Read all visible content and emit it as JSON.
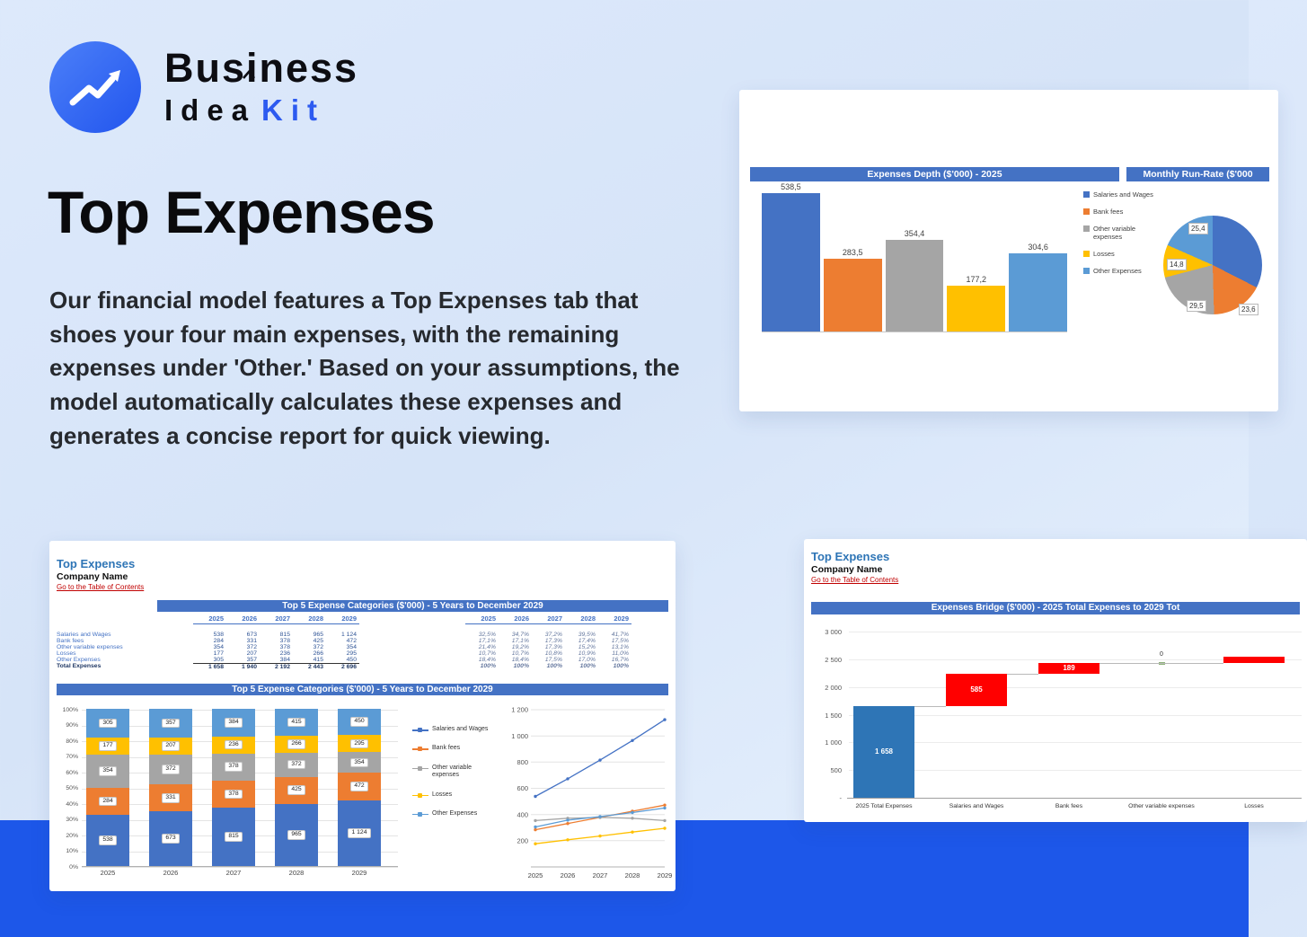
{
  "brand": {
    "line1": "Business",
    "line2_idea": "Idea",
    "line2_kit": "Kit"
  },
  "hero": {
    "title": "Top Expenses",
    "description": "Our financial model features a Top Expenses tab that shoes your four main expenses, with the remaining expenses under 'Other.' Based on your assumptions, the model automatically calculates these expenses and generates a concise report for quick viewing."
  },
  "colors": {
    "series": [
      "#4472C4",
      "#ED7D31",
      "#A5A5A5",
      "#FFC000",
      "#5B9BD5"
    ],
    "header_blue": "#4472C4",
    "bridge_total": "#2E75B6",
    "bridge_increase": "#FF0000",
    "band_blue": "#1D57E9",
    "accent": "#2D5BF0"
  },
  "categories": [
    "Salaries and Wages",
    "Bank fees",
    "Other variable expenses",
    "Losses",
    "Other Expenses"
  ],
  "depth_card": {
    "title_left": "Expenses Depth ($'000) - 2025",
    "title_right": "Monthly Run-Rate ($'000"
  },
  "sheet_card": {
    "title": "Top Expenses",
    "company": "Company Name",
    "link": "Go to the Table of Contents",
    "table_header": "Top 5 Expense Categories ($'000) - 5 Years to December 2029",
    "chart_header": "Top 5 Expense Categories ($'000) - 5 Years to December 2029"
  },
  "bridge_card": {
    "title": "Top Expenses",
    "company": "Company Name",
    "link": "Go to the Table of Contents",
    "chart_header": "Expenses Bridge ($'000) - 2025 Total Expenses to 2029 Tot"
  },
  "chart_data": [
    {
      "id": "expenses-depth",
      "type": "bar",
      "title": "Expenses Depth ($'000) - 2025",
      "categories": [
        "Salaries and Wages",
        "Bank fees",
        "Other variable expenses",
        "Losses",
        "Other Expenses"
      ],
      "values": [
        538.5,
        283.5,
        354.4,
        177.2,
        304.6
      ],
      "labels": [
        "538,5",
        "283,5",
        "354,4",
        "177,2",
        "304,6"
      ],
      "ylim": [
        0,
        600
      ],
      "legend_position": "right"
    },
    {
      "id": "monthly-runrate-pie",
      "type": "pie",
      "title": "Monthly Run-Rate ($'000",
      "slices": [
        {
          "name": "Salaries and Wages",
          "value": 44.9,
          "label": ""
        },
        {
          "name": "Bank fees",
          "value": 23.6,
          "label": "23,6"
        },
        {
          "name": "Other variable expenses",
          "value": 29.5,
          "label": "29,5"
        },
        {
          "name": "Losses",
          "value": 14.8,
          "label": "14,8"
        },
        {
          "name": "Other Expenses",
          "value": 25.4,
          "label": "25,4"
        }
      ]
    },
    {
      "id": "top5-table",
      "type": "table",
      "title": "Top 5 Expense Categories ($'000) - 5 Years to December 2029",
      "years": [
        "2025",
        "2026",
        "2027",
        "2028",
        "2029"
      ],
      "rows": [
        {
          "label": "Salaries and Wages",
          "values": [
            "538",
            "673",
            "815",
            "965",
            "1 124"
          ],
          "pct": [
            "32,5%",
            "34,7%",
            "37,2%",
            "39,5%",
            "41,7%"
          ]
        },
        {
          "label": "Bank fees",
          "values": [
            "284",
            "331",
            "378",
            "425",
            "472"
          ],
          "pct": [
            "17,1%",
            "17,1%",
            "17,3%",
            "17,4%",
            "17,5%"
          ]
        },
        {
          "label": "Other variable expenses",
          "values": [
            "354",
            "372",
            "378",
            "372",
            "354"
          ],
          "pct": [
            "21,4%",
            "19,2%",
            "17,3%",
            "15,2%",
            "13,1%"
          ]
        },
        {
          "label": "Losses",
          "values": [
            "177",
            "207",
            "236",
            "266",
            "295"
          ],
          "pct": [
            "10,7%",
            "10,7%",
            "10,8%",
            "10,9%",
            "11,0%"
          ]
        },
        {
          "label": "Other Expenses",
          "values": [
            "305",
            "357",
            "384",
            "415",
            "450"
          ],
          "pct": [
            "18,4%",
            "18,4%",
            "17,5%",
            "17,0%",
            "16,7%"
          ]
        },
        {
          "label": "Total Expenses",
          "values": [
            "1 658",
            "1 940",
            "2 192",
            "2 443",
            "2 696"
          ],
          "pct": [
            "100%",
            "100%",
            "100%",
            "100%",
            "100%"
          ],
          "total": true
        }
      ]
    },
    {
      "id": "top5-stacked",
      "type": "bar",
      "subtype": "stacked-100",
      "title": "Top 5 Expense Categories ($'000) - 5 Years to December 2029",
      "categories": [
        "2025",
        "2026",
        "2027",
        "2028",
        "2029"
      ],
      "series": [
        {
          "name": "Salaries and Wages",
          "values": [
            538,
            673,
            815,
            965,
            1124
          ]
        },
        {
          "name": "Bank fees",
          "values": [
            284,
            331,
            378,
            425,
            472
          ]
        },
        {
          "name": "Other variable expenses",
          "values": [
            354,
            372,
            378,
            372,
            354
          ]
        },
        {
          "name": "Losses",
          "values": [
            177,
            207,
            236,
            266,
            295
          ]
        },
        {
          "name": "Other Expenses",
          "values": [
            305,
            357,
            384,
            415,
            450
          ]
        }
      ],
      "y_ticks": [
        "100%",
        "90%",
        "80%",
        "70%",
        "60%",
        "50%",
        "40%",
        "30%",
        "20%",
        "10%",
        "0%"
      ],
      "legend_position": "right"
    },
    {
      "id": "top5-lines",
      "type": "line",
      "x": [
        "2025",
        "2026",
        "2027",
        "2028",
        "2029"
      ],
      "series": [
        {
          "name": "Salaries and Wages",
          "values": [
            538,
            673,
            815,
            965,
            1124
          ]
        },
        {
          "name": "Bank fees",
          "values": [
            284,
            331,
            378,
            425,
            472
          ]
        },
        {
          "name": "Other variable expenses",
          "values": [
            354,
            372,
            378,
            372,
            354
          ]
        },
        {
          "name": "Losses",
          "values": [
            177,
            207,
            236,
            266,
            295
          ]
        },
        {
          "name": "Other Expenses",
          "values": [
            305,
            357,
            384,
            415,
            450
          ]
        }
      ],
      "y_ticks": [
        1200,
        1000,
        800,
        600,
        400,
        200
      ],
      "ylim": [
        0,
        1200
      ]
    },
    {
      "id": "expenses-bridge",
      "type": "bar",
      "subtype": "waterfall",
      "title": "Expenses Bridge ($'000) - 2025 Total Expenses to 2029 Tot",
      "categories": [
        "2025 Total Expenses",
        "Salaries and Wages",
        "Bank fees",
        "Other variable expenses",
        "Losses"
      ],
      "bars": [
        {
          "label": "1 658",
          "start": 0,
          "end": 1658,
          "style": "total"
        },
        {
          "label": "585",
          "start": 1658,
          "end": 2243,
          "style": "increase"
        },
        {
          "label": "189",
          "start": 2243,
          "end": 2432,
          "style": "increase"
        },
        {
          "label": "0",
          "start": 2432,
          "end": 2432,
          "style": "zero"
        },
        {
          "label": "",
          "start": 2432,
          "end": 2550,
          "style": "increase"
        }
      ],
      "y_ticks": [
        "3 000",
        "2 500",
        "2 000",
        "1 500",
        "1 000",
        "500",
        "-"
      ],
      "ylim": [
        0,
        3000
      ]
    }
  ]
}
